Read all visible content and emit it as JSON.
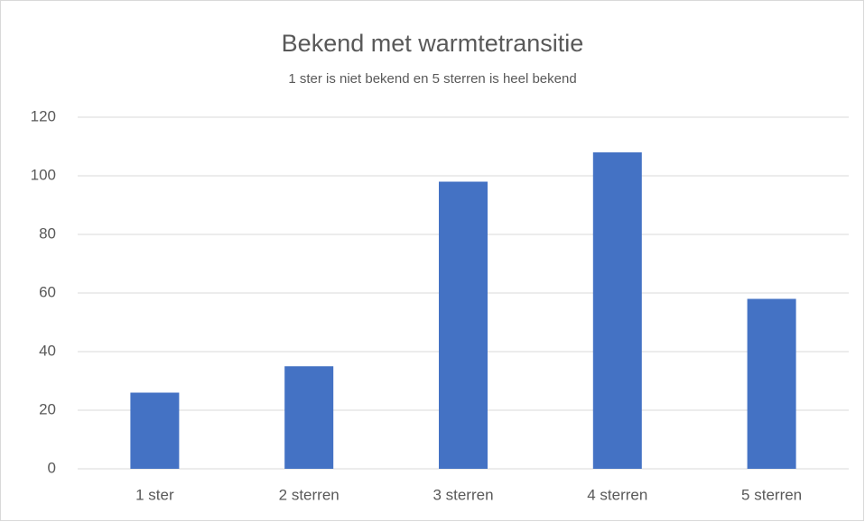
{
  "chart_data": {
    "type": "bar",
    "title": "Bekend met warmtetransitie",
    "subtitle": "1 ster is niet bekend en 5 sterren is heel bekend",
    "categories": [
      "1 ster",
      "2 sterren",
      "3 sterren",
      "4 sterren",
      "5 sterren"
    ],
    "values": [
      26,
      35,
      98,
      108,
      58
    ],
    "color": "#4472c4",
    "ylim": [
      0,
      120
    ],
    "yticks": [
      0,
      20,
      40,
      60,
      80,
      100,
      120
    ],
    "grid": true
  }
}
